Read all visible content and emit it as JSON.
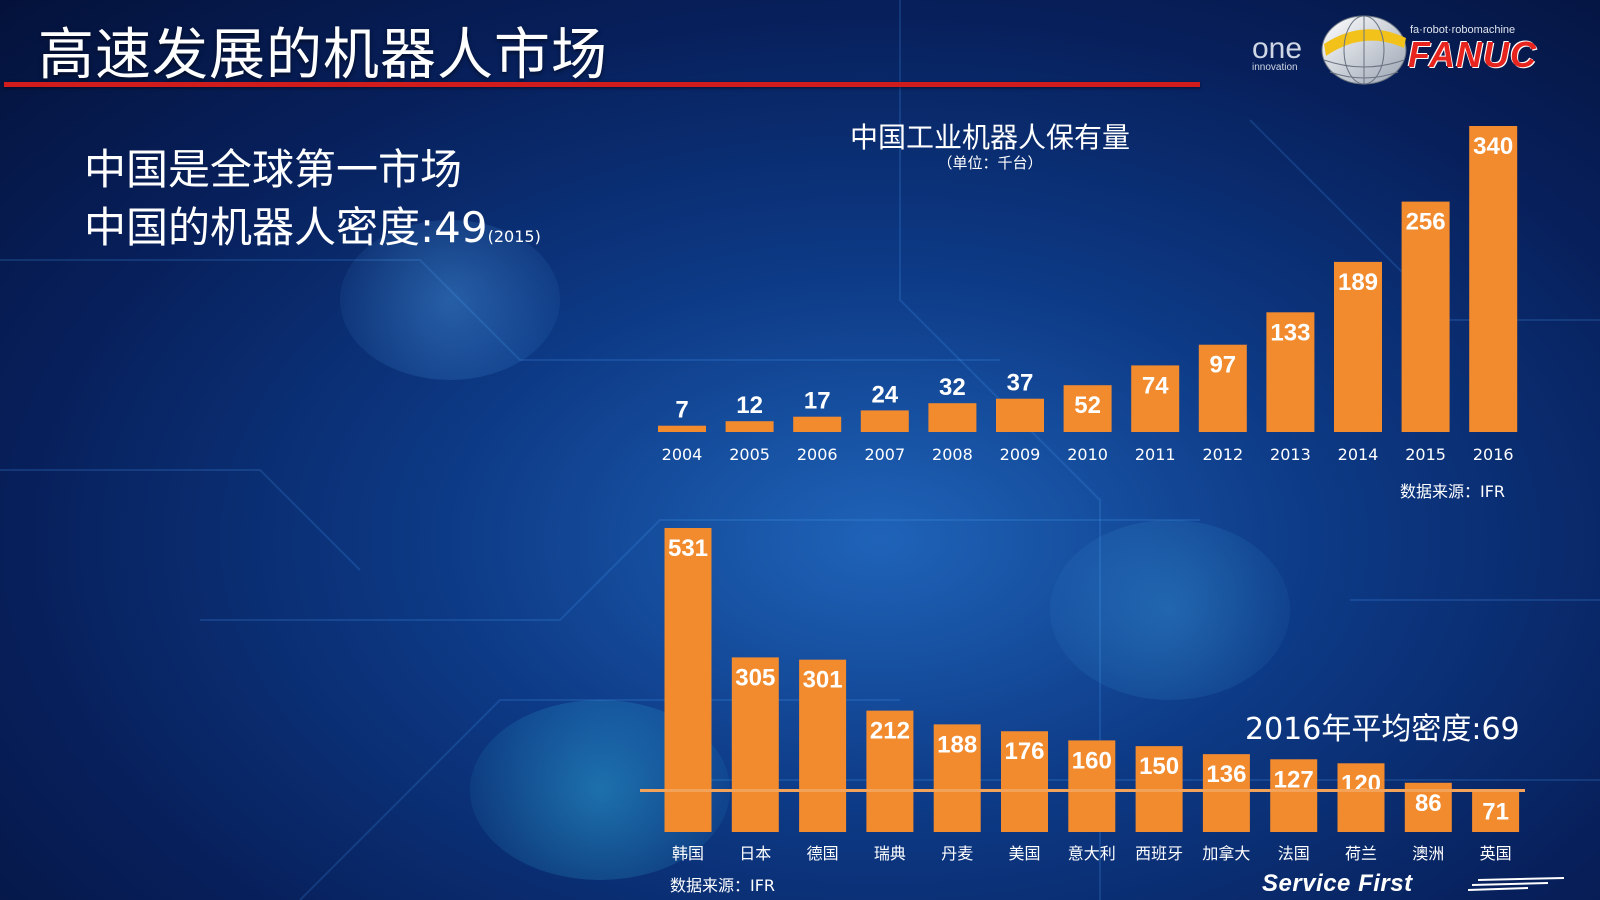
{
  "slide": {
    "title": "高速发展的机器人市场",
    "headline_1": "中国是全球第一市场",
    "headline_2_prefix": "中国的机器人密度:49",
    "headline_2_year": "(2015)",
    "accent_color": "#d01c1c",
    "bar_color": "#f28a2e"
  },
  "logo": {
    "one": "one",
    "innovation": "innovation",
    "tagline": "fa·robot·robomachine",
    "brand": "FANUC"
  },
  "footer": {
    "slogan": "Service First"
  },
  "chart_data": [
    {
      "type": "bar",
      "title": "中国工业机器人保有量",
      "subtitle": "（单位：千台）",
      "source": "数据来源：IFR",
      "categories": [
        "2004",
        "2005",
        "2006",
        "2007",
        "2008",
        "2009",
        "2010",
        "2011",
        "2012",
        "2013",
        "2014",
        "2015",
        "2016"
      ],
      "values": [
        7,
        12,
        17,
        24,
        32,
        37,
        52,
        74,
        97,
        133,
        189,
        256,
        340
      ],
      "ylim": [
        0,
        340
      ],
      "grid": false,
      "legend": false
    },
    {
      "type": "bar",
      "source": "数据来源：IFR",
      "categories": [
        "韩国",
        "日本",
        "德国",
        "瑞典",
        "丹麦",
        "美国",
        "意大利",
        "西班牙",
        "加拿大",
        "法国",
        "荷兰",
        "澳洲",
        "英国"
      ],
      "values": [
        531,
        305,
        301,
        212,
        188,
        176,
        160,
        150,
        136,
        127,
        120,
        86,
        71
      ],
      "ylim": [
        0,
        531
      ],
      "reference_line": {
        "label": "2016年平均密度:69",
        "value": 69
      },
      "grid": false,
      "legend": false
    }
  ]
}
